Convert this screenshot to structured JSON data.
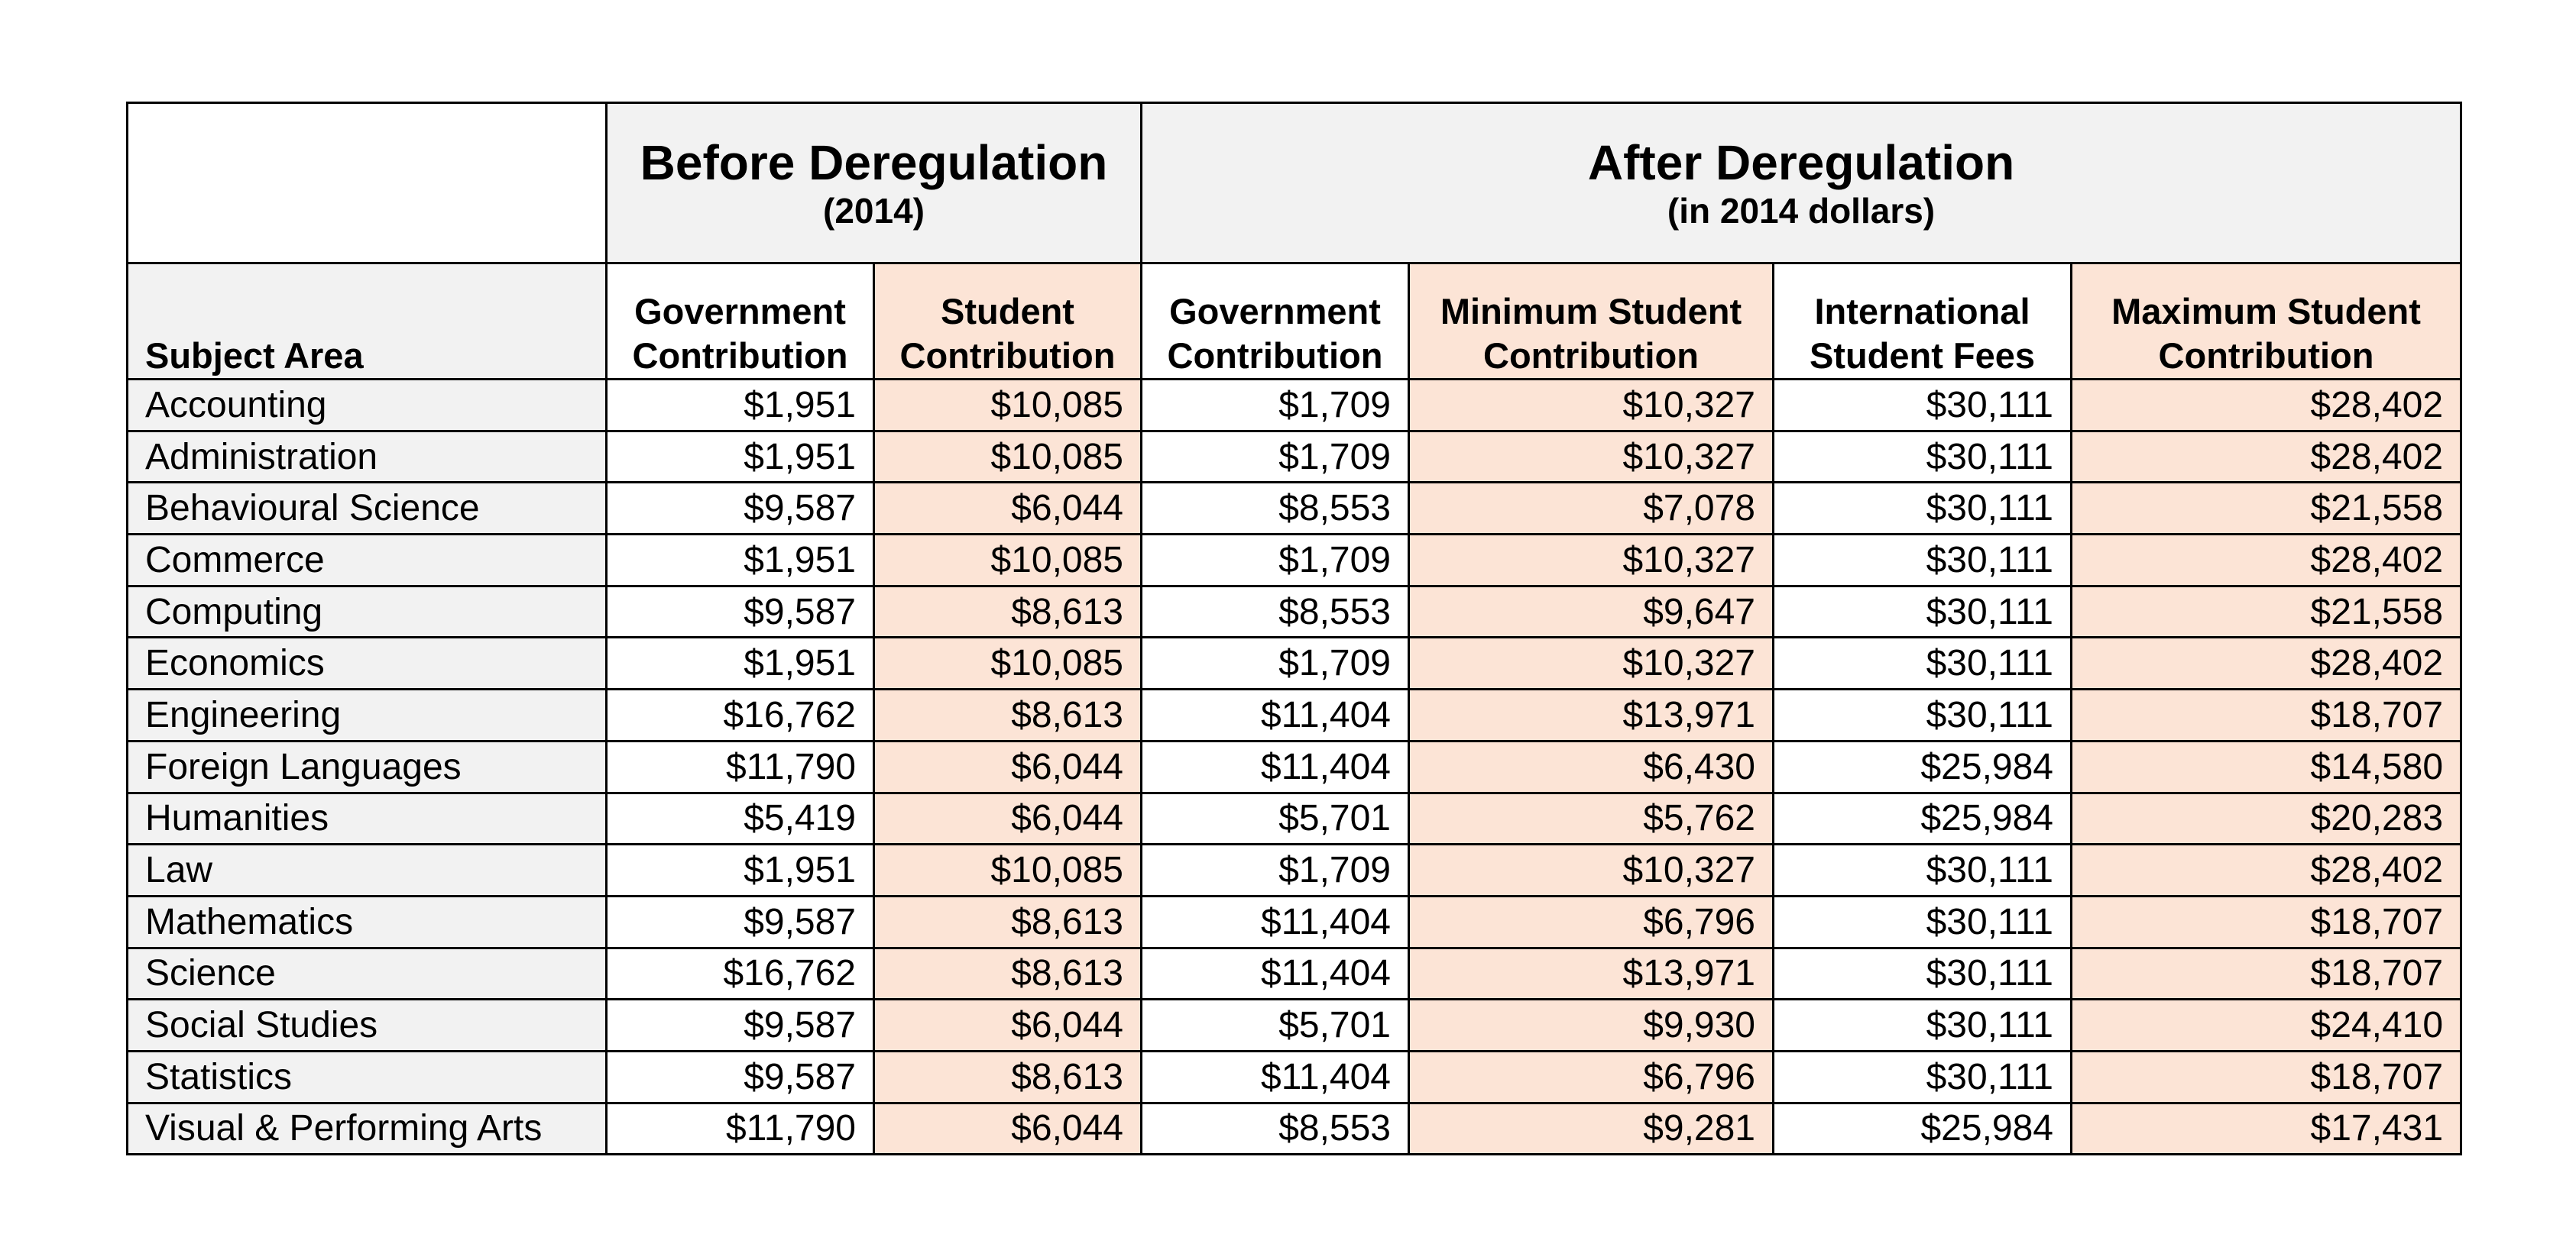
{
  "group_headers": {
    "before": {
      "title": "Before Deregulation",
      "subtitle": "(2014)"
    },
    "after": {
      "title": "After Deregulation",
      "subtitle": "(in 2014 dollars)"
    }
  },
  "column_headers": {
    "subject": "Subject Area",
    "before_gov": [
      "Government",
      "Contribution"
    ],
    "before_student": [
      "Student",
      "Contribution"
    ],
    "after_gov": [
      "Government",
      "Contribution"
    ],
    "after_min_student": [
      "Minimum Student",
      "Contribution"
    ],
    "after_international": [
      "International",
      "Student Fees"
    ],
    "after_max_student": [
      "Maximum Student",
      "Contribution"
    ]
  },
  "colors": {
    "header_grey": "#f2f2f2",
    "student_peach": "#fce4d6",
    "border": "#000000"
  },
  "rows": [
    {
      "subject": "Accounting",
      "before_gov": "$1,951",
      "before_student": "$10,085",
      "after_gov": "$1,709",
      "after_min_student": "$10,327",
      "after_international": "$30,111",
      "after_max_student": "$28,402"
    },
    {
      "subject": "Administration",
      "before_gov": "$1,951",
      "before_student": "$10,085",
      "after_gov": "$1,709",
      "after_min_student": "$10,327",
      "after_international": "$30,111",
      "after_max_student": "$28,402"
    },
    {
      "subject": "Behavioural Science",
      "before_gov": "$9,587",
      "before_student": "$6,044",
      "after_gov": "$8,553",
      "after_min_student": "$7,078",
      "after_international": "$30,111",
      "after_max_student": "$21,558"
    },
    {
      "subject": "Commerce",
      "before_gov": "$1,951",
      "before_student": "$10,085",
      "after_gov": "$1,709",
      "after_min_student": "$10,327",
      "after_international": "$30,111",
      "after_max_student": "$28,402"
    },
    {
      "subject": "Computing",
      "before_gov": "$9,587",
      "before_student": "$8,613",
      "after_gov": "$8,553",
      "after_min_student": "$9,647",
      "after_international": "$30,111",
      "after_max_student": "$21,558"
    },
    {
      "subject": "Economics",
      "before_gov": "$1,951",
      "before_student": "$10,085",
      "after_gov": "$1,709",
      "after_min_student": "$10,327",
      "after_international": "$30,111",
      "after_max_student": "$28,402"
    },
    {
      "subject": "Engineering",
      "before_gov": "$16,762",
      "before_student": "$8,613",
      "after_gov": "$11,404",
      "after_min_student": "$13,971",
      "after_international": "$30,111",
      "after_max_student": "$18,707"
    },
    {
      "subject": "Foreign Languages",
      "before_gov": "$11,790",
      "before_student": "$6,044",
      "after_gov": "$11,404",
      "after_min_student": "$6,430",
      "after_international": "$25,984",
      "after_max_student": "$14,580"
    },
    {
      "subject": "Humanities",
      "before_gov": "$5,419",
      "before_student": "$6,044",
      "after_gov": "$5,701",
      "after_min_student": "$5,762",
      "after_international": "$25,984",
      "after_max_student": "$20,283"
    },
    {
      "subject": "Law",
      "before_gov": "$1,951",
      "before_student": "$10,085",
      "after_gov": "$1,709",
      "after_min_student": "$10,327",
      "after_international": "$30,111",
      "after_max_student": "$28,402"
    },
    {
      "subject": "Mathematics",
      "before_gov": "$9,587",
      "before_student": "$8,613",
      "after_gov": "$11,404",
      "after_min_student": "$6,796",
      "after_international": "$30,111",
      "after_max_student": "$18,707"
    },
    {
      "subject": "Science",
      "before_gov": "$16,762",
      "before_student": "$8,613",
      "after_gov": "$11,404",
      "after_min_student": "$13,971",
      "after_international": "$30,111",
      "after_max_student": "$18,707"
    },
    {
      "subject": "Social Studies",
      "before_gov": "$9,587",
      "before_student": "$6,044",
      "after_gov": "$5,701",
      "after_min_student": "$9,930",
      "after_international": "$30,111",
      "after_max_student": "$24,410"
    },
    {
      "subject": "Statistics",
      "before_gov": "$9,587",
      "before_student": "$8,613",
      "after_gov": "$11,404",
      "after_min_student": "$6,796",
      "after_international": "$30,111",
      "after_max_student": "$18,707"
    },
    {
      "subject": "Visual & Performing Arts",
      "before_gov": "$11,790",
      "before_student": "$6,044",
      "after_gov": "$8,553",
      "after_min_student": "$9,281",
      "after_international": "$25,984",
      "after_max_student": "$17,431"
    }
  ]
}
